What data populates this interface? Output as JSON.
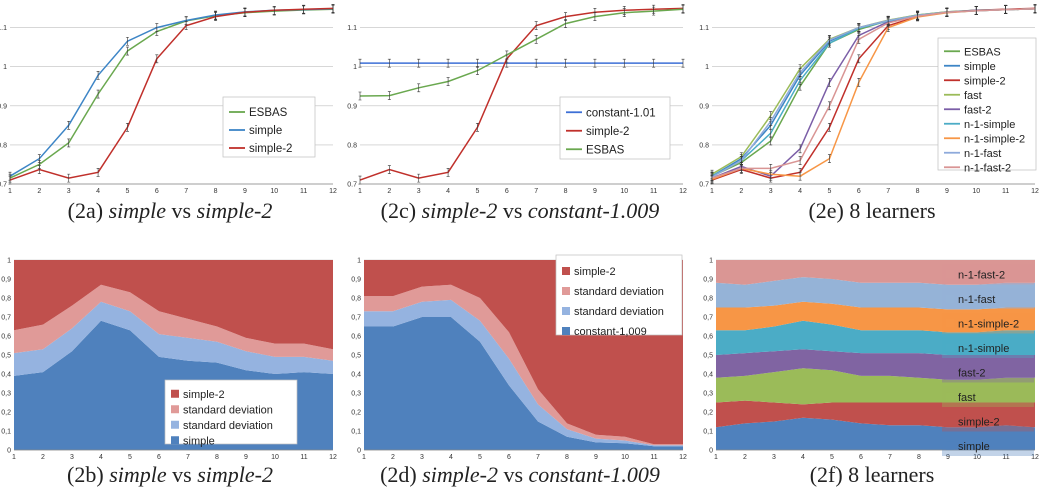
{
  "charts": [
    {
      "id": "2a",
      "caption": {
        "prefix": "(2a) ",
        "italic1": "simple",
        "mid": " vs ",
        "italic2": "simple-2",
        "suffix": ""
      },
      "chart_data": {
        "type": "line",
        "x": [
          1,
          2,
          3,
          4,
          5,
          6,
          7,
          8,
          9,
          10,
          11,
          12
        ],
        "ylim": [
          0.7,
          1.15
        ],
        "yticks": [
          "0.7",
          "0.8",
          "0.9",
          "1",
          "1.1"
        ],
        "grid": true,
        "legend_position": "bottom-right",
        "series": [
          {
            "name": "ESBAS",
            "color": "#6aa84f",
            "values": [
              0.715,
              0.75,
              0.805,
              0.93,
              1.04,
              1.09,
              1.117,
              1.13,
              1.138,
              1.142,
              1.145,
              1.147
            ]
          },
          {
            "name": "simple",
            "color": "#3d85c6",
            "values": [
              0.72,
              0.765,
              0.85,
              0.978,
              1.065,
              1.1,
              1.118,
              1.132,
              1.14,
              1.144,
              1.146,
              1.148
            ]
          },
          {
            "name": "simple-2",
            "color": "#c0302b",
            "values": [
              0.71,
              0.737,
              0.715,
              0.73,
              0.845,
              1.02,
              1.105,
              1.128,
              1.139,
              1.144,
              1.147,
              1.149
            ]
          }
        ]
      }
    },
    {
      "id": "2b",
      "caption": {
        "prefix": "(2b) ",
        "italic1": "simple",
        "mid": " vs ",
        "italic2": "simple-2",
        "suffix": ""
      },
      "chart_data": {
        "type": "area",
        "x": [
          1,
          2,
          3,
          4,
          5,
          6,
          7,
          8,
          9,
          10,
          11,
          12
        ],
        "ylim": [
          0,
          1
        ],
        "yticks": [
          "0",
          "0,1",
          "0,2",
          "0,3",
          "0,4",
          "0,5",
          "0,6",
          "0,7",
          "0,8",
          "0,9",
          "1"
        ],
        "grid": true,
        "legend_position": "bottom-right",
        "series": [
          {
            "name": "simple",
            "color": "#4f81bd",
            "values": [
              0.39,
              0.41,
              0.52,
              0.68,
              0.63,
              0.49,
              0.47,
              0.46,
              0.42,
              0.4,
              0.41,
              0.4
            ]
          },
          {
            "name": "standard deviation",
            "color": "#95b3e0",
            "values": [
              0.12,
              0.12,
              0.12,
              0.1,
              0.1,
              0.12,
              0.12,
              0.11,
              0.1,
              0.09,
              0.08,
              0.07
            ]
          },
          {
            "name": "standard deviation",
            "color": "#e09a98",
            "values": [
              0.12,
              0.13,
              0.12,
              0.09,
              0.1,
              0.12,
              0.1,
              0.08,
              0.07,
              0.07,
              0.07,
              0.06
            ]
          },
          {
            "name": "simple-2",
            "color": "#c0504d",
            "values": [
              0.37,
              0.34,
              0.24,
              0.13,
              0.17,
              0.27,
              0.31,
              0.35,
              0.41,
              0.44,
              0.44,
              0.47
            ]
          }
        ]
      }
    },
    {
      "id": "2c",
      "caption": {
        "prefix": "(2c) ",
        "italic1": "simple-2",
        "mid": " vs ",
        "italic2": "constant-1.009",
        "suffix": ""
      },
      "chart_data": {
        "type": "line",
        "x": [
          1,
          2,
          3,
          4,
          5,
          6,
          7,
          8,
          9,
          10,
          11,
          12
        ],
        "ylim": [
          0.7,
          1.15
        ],
        "yticks": [
          "0.7",
          "0.8",
          "0.9",
          "1",
          "1.1"
        ],
        "grid": true,
        "legend_position": "right",
        "series": [
          {
            "name": "constant-1.01",
            "color": "#3d6fd6",
            "values": [
              1.009,
              1.009,
              1.009,
              1.009,
              1.009,
              1.009,
              1.009,
              1.009,
              1.009,
              1.009,
              1.009,
              1.009
            ]
          },
          {
            "name": "simple-2",
            "color": "#c0302b",
            "values": [
              0.71,
              0.737,
              0.715,
              0.73,
              0.845,
              1.02,
              1.105,
              1.128,
              1.139,
              1.144,
              1.147,
              1.149
            ]
          },
          {
            "name": "ESBAS",
            "color": "#6aa84f",
            "values": [
              0.925,
              0.926,
              0.946,
              0.962,
              0.99,
              1.03,
              1.07,
              1.11,
              1.128,
              1.138,
              1.142,
              1.147
            ]
          }
        ]
      }
    },
    {
      "id": "2d",
      "caption": {
        "prefix": "(2d) ",
        "italic1": "simple-2",
        "mid": " vs ",
        "italic2": "constant-1.009",
        "suffix": ""
      },
      "chart_data": {
        "type": "area",
        "x": [
          1,
          2,
          3,
          4,
          5,
          6,
          7,
          8,
          9,
          10,
          11,
          12
        ],
        "ylim": [
          0,
          1
        ],
        "yticks": [
          "0",
          "0,1",
          "0,2",
          "0,3",
          "0,4",
          "0,5",
          "0,6",
          "0,7",
          "0,8",
          "0,9",
          "1"
        ],
        "grid": true,
        "legend_position": "top-right",
        "series": [
          {
            "name": "constant-1,009",
            "color": "#4f81bd",
            "values": [
              0.65,
              0.65,
              0.7,
              0.7,
              0.57,
              0.34,
              0.15,
              0.07,
              0.04,
              0.035,
              0.02,
              0.02
            ]
          },
          {
            "name": "standard deviation",
            "color": "#95b3e0",
            "values": [
              0.08,
              0.08,
              0.08,
              0.09,
              0.11,
              0.14,
              0.09,
              0.04,
              0.02,
              0.015,
              0.005,
              0.005
            ]
          },
          {
            "name": "standard deviation",
            "color": "#e09a98",
            "values": [
              0.08,
              0.08,
              0.08,
              0.08,
              0.12,
              0.14,
              0.08,
              0.03,
              0.02,
              0.02,
              0.005,
              0.005
            ]
          },
          {
            "name": "simple-2",
            "color": "#c0504d",
            "values": [
              0.19,
              0.19,
              0.14,
              0.13,
              0.2,
              0.38,
              0.68,
              0.86,
              0.92,
              0.93,
              0.97,
              0.97
            ]
          }
        ]
      }
    },
    {
      "id": "2e",
      "caption": {
        "prefix": "(2e) 8 learners",
        "italic1": "",
        "mid": "",
        "italic2": "",
        "suffix": ""
      },
      "chart_data": {
        "type": "line",
        "x": [
          1,
          2,
          3,
          4,
          5,
          6,
          7,
          8,
          9,
          10,
          11,
          12
        ],
        "ylim": [
          0.7,
          1.15
        ],
        "yticks": [
          "0.7",
          "0.8",
          "0.9",
          "1",
          "1.1"
        ],
        "grid": true,
        "legend_position": "right",
        "series": [
          {
            "name": "ESBAS",
            "color": "#6aa84f",
            "values": [
              0.72,
              0.755,
              0.81,
              0.95,
              1.06,
              1.095,
              1.118,
              1.131,
              1.139,
              1.143,
              1.146,
              1.148
            ]
          },
          {
            "name": "simple",
            "color": "#3d85c6",
            "values": [
              0.72,
              0.765,
              0.85,
              0.978,
              1.065,
              1.1,
              1.118,
              1.132,
              1.14,
              1.144,
              1.146,
              1.148
            ]
          },
          {
            "name": "simple-2",
            "color": "#c0302b",
            "values": [
              0.71,
              0.737,
              0.715,
              0.73,
              0.845,
              1.02,
              1.105,
              1.128,
              1.139,
              1.144,
              1.147,
              1.149
            ]
          },
          {
            "name": "fast",
            "color": "#9bbb59",
            "values": [
              0.725,
              0.77,
              0.875,
              0.995,
              1.07,
              1.1,
              1.119,
              1.132,
              1.14,
              1.144,
              1.146,
              1.148
            ]
          },
          {
            "name": "fast-2",
            "color": "#7b5ea7",
            "values": [
              0.715,
              0.745,
              0.72,
              0.79,
              0.96,
              1.08,
              1.115,
              1.13,
              1.139,
              1.144,
              1.146,
              1.148
            ]
          },
          {
            "name": "n-1-simple",
            "color": "#4bacc6",
            "values": [
              0.72,
              0.76,
              0.83,
              0.965,
              1.06,
              1.098,
              1.117,
              1.131,
              1.139,
              1.143,
              1.146,
              1.148
            ]
          },
          {
            "name": "n-1-simple-2",
            "color": "#f79646",
            "values": [
              0.712,
              0.74,
              0.725,
              0.72,
              0.765,
              0.96,
              1.1,
              1.127,
              1.138,
              1.143,
              1.146,
              1.148
            ]
          },
          {
            "name": "n-1-fast",
            "color": "#8eaadb",
            "values": [
              0.718,
              0.76,
              0.86,
              0.985,
              1.068,
              1.1,
              1.118,
              1.131,
              1.139,
              1.143,
              1.146,
              1.148
            ]
          },
          {
            "name": "n-1-fast-2",
            "color": "#d99594",
            "values": [
              0.715,
              0.74,
              0.74,
              0.76,
              0.9,
              1.07,
              1.112,
              1.129,
              1.139,
              1.143,
              1.146,
              1.148
            ]
          }
        ]
      }
    },
    {
      "id": "2f",
      "caption": {
        "prefix": "(2f) 8 learners",
        "italic1": "",
        "mid": "",
        "italic2": "",
        "suffix": ""
      },
      "chart_data": {
        "type": "area",
        "x": [
          1,
          2,
          3,
          4,
          5,
          6,
          7,
          8,
          9,
          10,
          11,
          12
        ],
        "ylim": [
          0,
          1
        ],
        "yticks": [
          "0",
          "0,1",
          "0,2",
          "0,3",
          "0,4",
          "0,5",
          "0,6",
          "0,7",
          "0,8",
          "0,9",
          "1"
        ],
        "grid": true,
        "legend_position": "right",
        "legend_order": "reversed",
        "series": [
          {
            "name": "simple",
            "color": "#4f81bd",
            "values": [
              0.12,
              0.14,
              0.15,
              0.17,
              0.16,
              0.14,
              0.13,
              0.13,
              0.12,
              0.12,
              0.13,
              0.12
            ]
          },
          {
            "name": "simple-2",
            "color": "#c0504d",
            "values": [
              0.13,
              0.12,
              0.1,
              0.07,
              0.09,
              0.11,
              0.12,
              0.12,
              0.13,
              0.13,
              0.12,
              0.13
            ]
          },
          {
            "name": "fast",
            "color": "#9bbb59",
            "values": [
              0.13,
              0.13,
              0.16,
              0.19,
              0.17,
              0.14,
              0.14,
              0.13,
              0.12,
              0.12,
              0.13,
              0.13
            ]
          },
          {
            "name": "fast-2",
            "color": "#8064a2",
            "values": [
              0.12,
              0.12,
              0.11,
              0.1,
              0.1,
              0.12,
              0.12,
              0.13,
              0.13,
              0.13,
              0.12,
              0.12
            ]
          },
          {
            "name": "n-1-simple",
            "color": "#4bacc6",
            "values": [
              0.13,
              0.12,
              0.13,
              0.15,
              0.14,
              0.12,
              0.12,
              0.12,
              0.12,
              0.12,
              0.13,
              0.13
            ]
          },
          {
            "name": "n-1-simple-2",
            "color": "#f79646",
            "values": [
              0.12,
              0.12,
              0.11,
              0.1,
              0.11,
              0.12,
              0.12,
              0.12,
              0.12,
              0.12,
              0.12,
              0.12
            ]
          },
          {
            "name": "n-1-fast",
            "color": "#95b3d7",
            "values": [
              0.13,
              0.12,
              0.13,
              0.13,
              0.13,
              0.13,
              0.13,
              0.13,
              0.13,
              0.13,
              0.13,
              0.13
            ]
          },
          {
            "name": "n-1-fast-2",
            "color": "#da9694",
            "values": [
              0.12,
              0.13,
              0.11,
              0.09,
              0.1,
              0.12,
              0.12,
              0.12,
              0.13,
              0.13,
              0.12,
              0.12
            ]
          }
        ]
      }
    }
  ]
}
